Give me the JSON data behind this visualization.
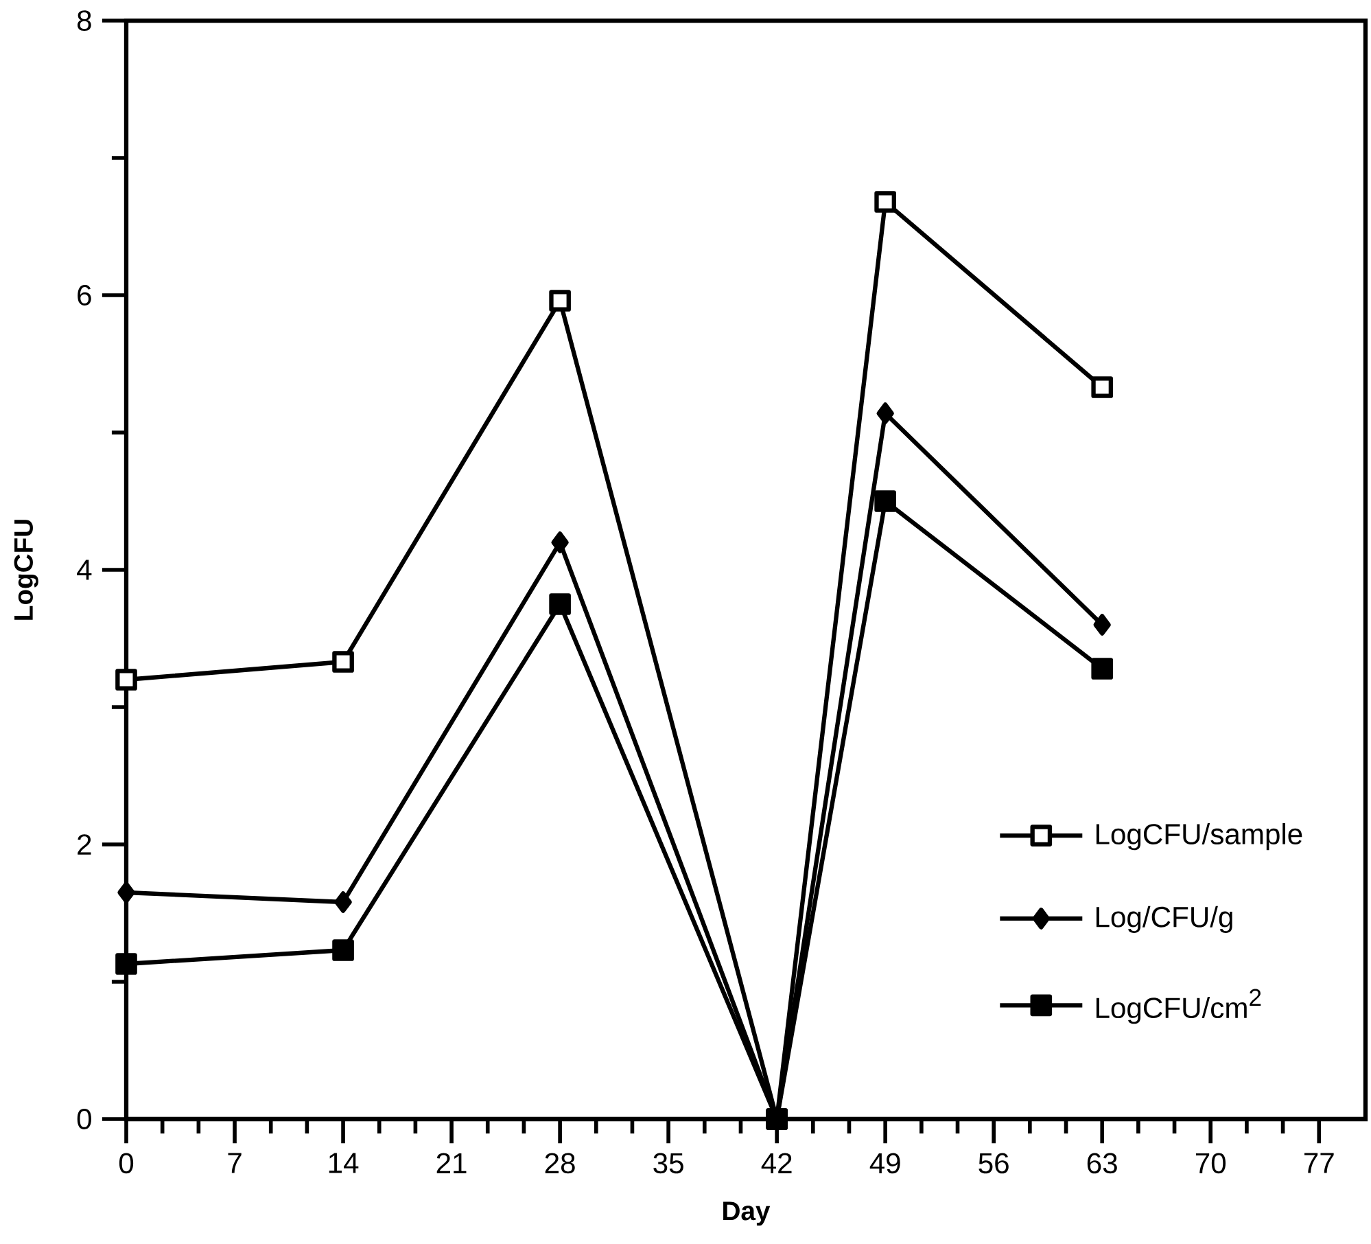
{
  "chart_data": {
    "type": "line",
    "xlabel": "Day",
    "ylabel": "LogCFU",
    "x": [
      0,
      14,
      28,
      42,
      49,
      63
    ],
    "series": [
      {
        "name": "LogCFU/sample",
        "color": "#000000",
        "marker": "square",
        "values": [
          3.2,
          3.33,
          5.96,
          0,
          6.68,
          5.33
        ]
      },
      {
        "name": "Log/CFU/g",
        "color": "#000000",
        "marker": "diamond",
        "values": [
          1.65,
          1.58,
          4.2,
          0,
          5.14,
          3.6
        ]
      },
      {
        "name": "LogCFU/cm$^{2}$",
        "color": "#000000",
        "marker": "square",
        "values": [
          1.13,
          1.23,
          3.75,
          0,
          4.5,
          3.28
        ]
      }
    ],
    "xlim": [
      0,
      80
    ],
    "xticks": [
      0,
      7,
      14,
      21,
      28,
      35,
      42,
      49,
      56,
      63,
      70,
      77
    ],
    "ylim": [
      0,
      8
    ],
    "yticks": [
      0,
      2,
      4,
      6,
      8
    ],
    "grid": false,
    "legend": "bottom right",
    "line_style": "solid"
  }
}
